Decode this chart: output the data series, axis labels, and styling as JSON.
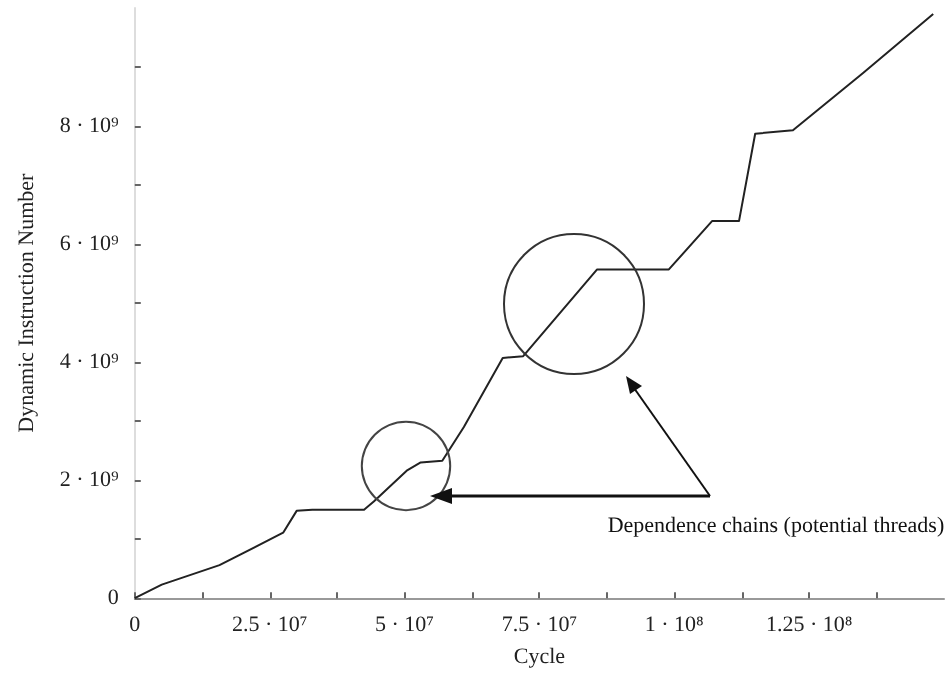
{
  "chart_data": {
    "type": "line",
    "xlabel": "Cycle",
    "ylabel": "Dynamic Instruction Number",
    "annotations": [
      "Dependence chains (potential threads)"
    ],
    "x": [
      0,
      5000000,
      15700000,
      27500000,
      30000000,
      32900000,
      42500000,
      44300000,
      50400000,
      53000000,
      57000000,
      61000000,
      68200000,
      72000000,
      85700000,
      99000000,
      107000000,
      112000000,
      115000000,
      122000000,
      135000000,
      148000000
    ],
    "series": [
      {
        "color": "#222222",
        "values": [
          0,
          230000000,
          560000000,
          1110000000,
          1480000000,
          1500000000,
          1500000000,
          1640000000,
          2160000000,
          2300000000,
          2330000000,
          2900000000,
          4070000000,
          4100000000,
          5570000000,
          5570000000,
          6390000000,
          6390000000,
          7870000000,
          7930000000,
          8900000000,
          9900000000
        ]
      }
    ],
    "xlim": [
      0,
      150000000
    ],
    "ylim": [
      0,
      10000000000
    ],
    "xticks": [
      0,
      {
        "value": 12500000,
        "label": null
      },
      {
        "value": 25000000,
        "label": "2.5 · 10⁷"
      },
      {
        "value": 37500000,
        "label": null
      },
      {
        "value": 50000000,
        "label": "5 · 10⁷"
      },
      {
        "value": 62500000,
        "label": null
      },
      {
        "value": 75000000,
        "label": "7.5 · 10⁷"
      },
      {
        "value": 87500000,
        "label": null
      },
      {
        "value": 100000000,
        "label": "1 · 10⁸"
      },
      {
        "value": 112500000,
        "label": null
      },
      {
        "value": 125000000,
        "label": "1.25 · 10⁸"
      },
      {
        "value": 137500000,
        "label": null
      }
    ],
    "yticks": [
      0,
      {
        "value": 1000000000,
        "label": null
      },
      {
        "value": 2000000000,
        "label": "2 · 10⁹"
      },
      {
        "value": 3000000000,
        "label": null
      },
      {
        "value": 4000000000,
        "label": "4 · 10⁹"
      },
      {
        "value": 5000000000,
        "label": null
      },
      {
        "value": 6000000000,
        "label": "6 · 10⁹"
      },
      {
        "value": 7000000000,
        "label": null
      },
      {
        "value": 8000000000,
        "label": "8 · 10⁹"
      },
      {
        "value": 9000000000,
        "label": null
      }
    ],
    "grid": false,
    "marker": "none",
    "line_style": "solid"
  }
}
